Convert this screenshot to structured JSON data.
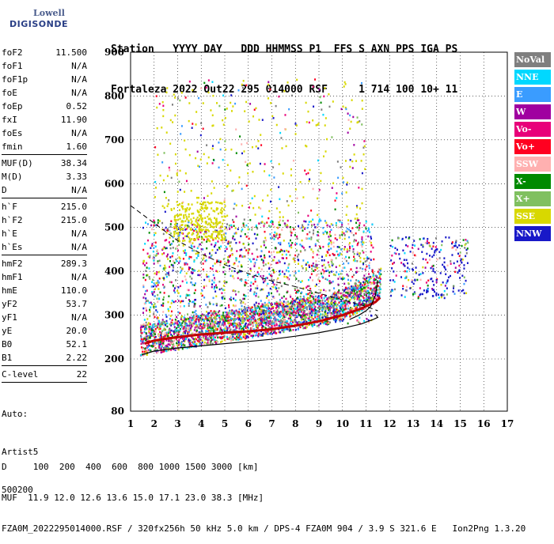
{
  "logo": {
    "line1": "Lowell",
    "line2": "DIGISONDE"
  },
  "header": {
    "line1": "Station   YYYY DAY   DDD HHMMSS P1  FFS S AXN PPS IGA PS",
    "line2": "Fortaleza 2022 Out22 295 014000 RSF     1 714 100 10+ 11"
  },
  "params": [
    [
      {
        "k": "foF2",
        "v": "11.500"
      },
      {
        "k": "foF1",
        "v": "N/A"
      },
      {
        "k": "foF1p",
        "v": "N/A"
      },
      {
        "k": "foE",
        "v": "N/A"
      },
      {
        "k": "foEp",
        "v": "0.52"
      },
      {
        "k": "fxI",
        "v": "11.90"
      },
      {
        "k": "foEs",
        "v": "N/A"
      },
      {
        "k": "fmin",
        "v": "1.60"
      }
    ],
    [
      {
        "k": "MUF(D)",
        "v": "38.34"
      },
      {
        "k": "M(D)",
        "v": "3.33"
      },
      {
        "k": "D",
        "v": "N/A"
      }
    ],
    [
      {
        "k": "h`F",
        "v": "215.0"
      },
      {
        "k": "h`F2",
        "v": "215.0"
      },
      {
        "k": "h`E",
        "v": "N/A"
      },
      {
        "k": "h`Es",
        "v": "N/A"
      }
    ],
    [
      {
        "k": "hmF2",
        "v": "289.3"
      },
      {
        "k": "hmF1",
        "v": "N/A"
      },
      {
        "k": "hmE",
        "v": "110.0"
      },
      {
        "k": "yF2",
        "v": "53.7"
      },
      {
        "k": "yF1",
        "v": "N/A"
      },
      {
        "k": "yE",
        "v": "20.0"
      },
      {
        "k": "B0",
        "v": "52.1"
      },
      {
        "k": "B1",
        "v": "2.22"
      }
    ],
    [
      {
        "k": "C-level",
        "v": "22"
      }
    ]
  ],
  "auto": {
    "line1": "Auto:",
    "line2": "Artist5",
    "line3": "500200"
  },
  "legend": [
    {
      "label": "NoVal",
      "color": "#7f7f7f"
    },
    {
      "label": "NNE",
      "color": "#00d8ff"
    },
    {
      "label": "E",
      "color": "#3a9cff"
    },
    {
      "label": "W",
      "color": "#a000a0"
    },
    {
      "label": "Vo-",
      "color": "#e8007a"
    },
    {
      "label": "Vo+",
      "color": "#ff0020"
    },
    {
      "label": "SSW",
      "color": "#ffb0b0"
    },
    {
      "label": "X-",
      "color": "#008a00"
    },
    {
      "label": "X+",
      "color": "#80c060"
    },
    {
      "label": "SSE",
      "color": "#d8d800"
    },
    {
      "label": "NNW",
      "color": "#1818c8"
    }
  ],
  "footer": {
    "line1": "D     100  200  400  600  800 1000 1500 3000 [km]",
    "line2": "MUF  11.9 12.0 12.6 13.6 15.0 17.1 23.0 38.3 [MHz]",
    "line3": "FZA0M_2022295014000.RSF / 320fx256h 50 kHz 5.0 km / DPS-4 FZA0M 904 / 3.9 S 321.6 E   Ion2Png 1.3.20"
  },
  "chart_data": {
    "type": "scatter",
    "xlim": [
      1,
      17
    ],
    "ylim": [
      80,
      900
    ],
    "xticks": [
      1,
      2,
      3,
      4,
      5,
      6,
      7,
      8,
      9,
      10,
      11,
      12,
      13,
      14,
      15,
      16,
      17
    ],
    "yticks": [
      80,
      200,
      300,
      400,
      500,
      600,
      700,
      800,
      900
    ],
    "grid": true,
    "legend_position": "right",
    "trace_solid": [
      [
        1.5,
        210
      ],
      [
        2,
        218
      ],
      [
        3,
        225
      ],
      [
        4,
        230
      ],
      [
        5,
        235
      ],
      [
        6,
        240
      ],
      [
        7,
        245
      ],
      [
        8,
        252
      ],
      [
        9,
        260
      ],
      [
        10,
        270
      ],
      [
        10.8,
        280
      ],
      [
        11.3,
        290
      ],
      [
        11.5,
        295
      ],
      [
        11.4,
        302
      ]
    ],
    "trace_red": [
      [
        1.6,
        235
      ],
      [
        2,
        242
      ],
      [
        3,
        250
      ],
      [
        4,
        256
      ],
      [
        5,
        260
      ],
      [
        6,
        263
      ],
      [
        7,
        268
      ],
      [
        8,
        276
      ],
      [
        9,
        286
      ],
      [
        10,
        300
      ],
      [
        10.8,
        315
      ],
      [
        11.4,
        330
      ],
      [
        11.6,
        340
      ]
    ],
    "profile_solid": [
      [
        10.3,
        290
      ],
      [
        10.7,
        300
      ],
      [
        11,
        310
      ],
      [
        11.2,
        320
      ],
      [
        11.4,
        345
      ],
      [
        11.5,
        380
      ]
    ],
    "profile_dashed": [
      [
        1.0,
        550
      ],
      [
        2,
        510
      ],
      [
        3,
        470
      ],
      [
        4,
        440
      ],
      [
        5,
        415
      ],
      [
        6,
        395
      ],
      [
        7,
        378
      ],
      [
        8,
        365
      ],
      [
        9,
        350
      ],
      [
        10,
        335
      ],
      [
        11,
        320
      ],
      [
        11.5,
        310
      ]
    ]
  }
}
